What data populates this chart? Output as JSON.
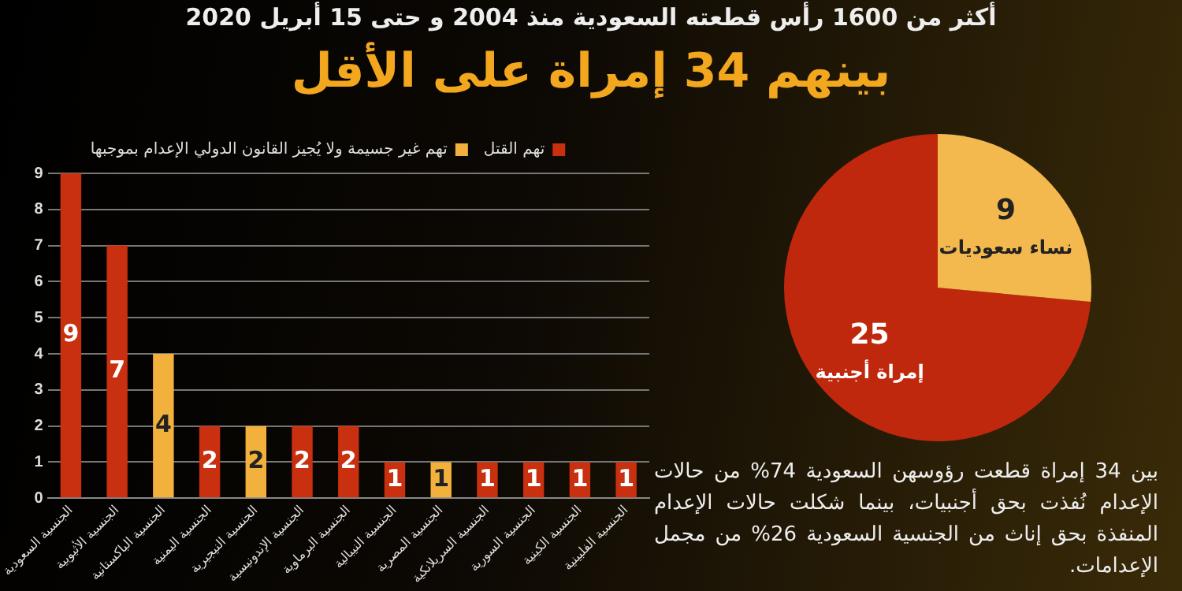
{
  "chart_data": [
    {
      "type": "bar",
      "title": "أكثر من 1600 رأس قطعته السعودية منذ 2004 و حتى 15 أبريل 2020",
      "subtitle": "بينهم 34 إمراة على الأقل",
      "categories": [
        "الجنسية السعودية",
        "الجنسية الأثيوبية",
        "الجنسية الباكستانية",
        "الجنسية اليمنية",
        "الجنسية النيجيرية",
        "الجنسية الإندونيسية",
        "الجنسية البرماوية",
        "الجنسية النيبالية",
        "الجنسية المصرية",
        "الجنسية السريلانكية",
        "الجنسية السورية",
        "الجنسية الكينية",
        "الجنسية الفلبينية"
      ],
      "series": [
        {
          "name": "تهم القتل",
          "color": "#c8300f",
          "values": [
            9,
            7,
            null,
            2,
            null,
            2,
            2,
            1,
            null,
            1,
            1,
            1,
            1
          ]
        },
        {
          "name": "تهم غير جسيمة ولا يُجيز القانون الدولي الإعدام بموجبها",
          "color": "#f2b13c",
          "values": [
            null,
            null,
            4,
            null,
            2,
            null,
            null,
            null,
            1,
            null,
            null,
            null,
            null
          ]
        }
      ],
      "stacked": true,
      "ylim": [
        0,
        9
      ],
      "yticks": [
        0,
        1,
        2,
        3,
        4,
        5,
        6,
        7,
        8,
        9
      ],
      "grid": "y",
      "legend": "top",
      "data_labels": true
    },
    {
      "type": "pie",
      "categories": [
        "إمراة أجنبية",
        "نساء سعوديات"
      ],
      "values": [
        25,
        9
      ],
      "colors": [
        "#c0280d",
        "#f3b84e"
      ],
      "data_labels": true,
      "annotations": [
        "بين 34 إمراة قطعت رؤوسهن السعودية 74% من حالات الإعدام نُفذت بحق أجنبيات، بينما شكلت حالات الإعدام المنفذة بحق إناث من الجنسية السعودية 26% من مجمل الإعدامات."
      ]
    }
  ]
}
